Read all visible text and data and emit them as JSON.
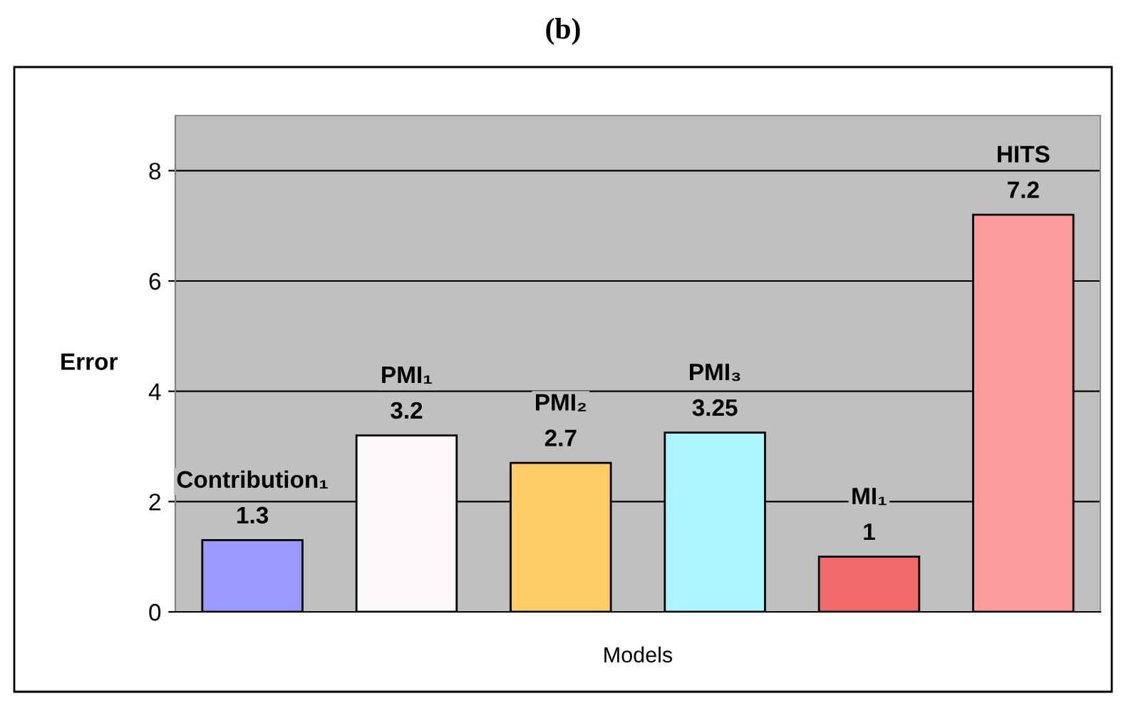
{
  "chart_data": {
    "type": "bar",
    "title": "(b)",
    "xlabel": "Models",
    "ylabel": "Error",
    "categories": [
      "Contribution₁",
      "PMI₁",
      "PMI₂",
      "PMI₃",
      "MI₁",
      "HITS"
    ],
    "values": [
      1.3,
      3.2,
      2.7,
      3.25,
      1,
      7.2
    ],
    "colors": [
      "#9999ff",
      "#fdf8f8",
      "#ffcc66",
      "#aaf5ff",
      "#f26b6b",
      "#fb9b9b"
    ],
    "ylim": [
      0,
      9
    ],
    "yticks": [
      0,
      2,
      4,
      6,
      8
    ],
    "grid": "y",
    "data_labels": true,
    "tick_labels": "y"
  }
}
